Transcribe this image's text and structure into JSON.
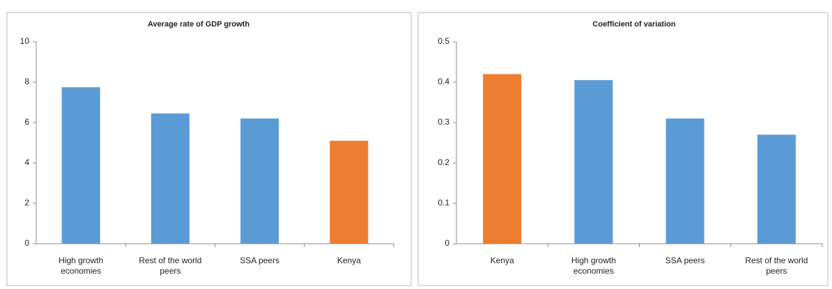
{
  "chart_data": [
    {
      "type": "bar",
      "title": "Average rate of GDP growth",
      "categories": [
        "High growth economies",
        "Rest of the world peers",
        "SSA peers",
        "Kenya"
      ],
      "values": [
        7.75,
        6.45,
        6.2,
        5.1
      ],
      "colors": [
        "#5b9bd5",
        "#5b9bd5",
        "#5b9bd5",
        "#ed7d31"
      ],
      "ylim": [
        0,
        10
      ],
      "yticks": [
        0,
        2,
        4,
        6,
        8,
        10
      ]
    },
    {
      "type": "bar",
      "title": "Coefficient of variation",
      "categories": [
        "Kenya",
        "High growth economies",
        "SSA peers",
        "Rest of the world peers"
      ],
      "values": [
        0.42,
        0.405,
        0.31,
        0.27
      ],
      "colors": [
        "#ed7d31",
        "#5b9bd5",
        "#5b9bd5",
        "#5b9bd5"
      ],
      "ylim": [
        0,
        0.5
      ],
      "yticks": [
        0,
        0.1,
        0.2,
        0.3,
        0.4,
        0.5
      ]
    }
  ]
}
